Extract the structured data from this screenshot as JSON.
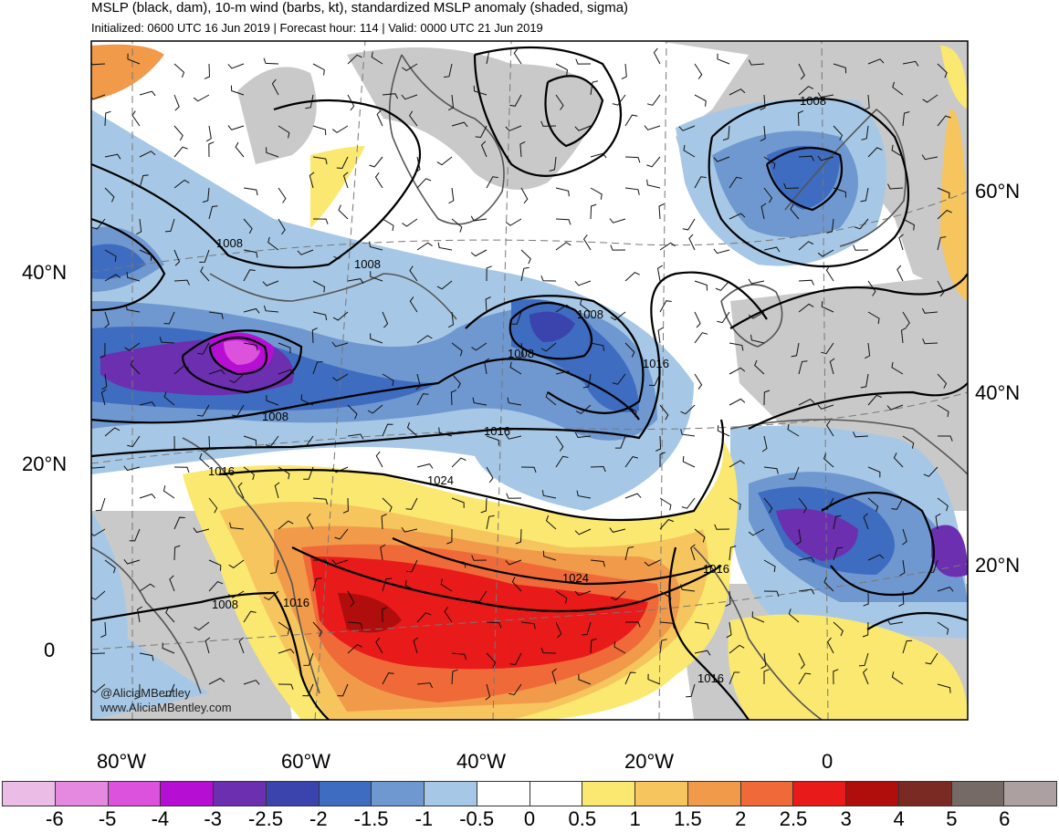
{
  "title": "MSLP (black, dam), 10-m wind (barbs, kt), standardized MSLP anomaly (shaded, sigma)",
  "subtitle": "Initialized: 0600 UTC 16 Jun 2019 | Forecast hour: 114 | Valid: 0000 UTC 21 Jun 2019",
  "credit": {
    "handle": "@AliciaMBentley",
    "site": "www.AliciaMBentley.com"
  },
  "lat_labels_left": [
    "40°N",
    "20°N",
    "0"
  ],
  "lat_labels_right": [
    "60°N",
    "40°N",
    "20°N"
  ],
  "lon_labels": [
    "80°W",
    "60°W",
    "40°W",
    "20°W",
    "0"
  ],
  "isobar_labels": [
    "1008",
    "1008",
    "1008",
    "1016",
    "1008",
    "1008",
    "1016",
    "1024",
    "1016",
    "1024",
    "1016",
    "1008",
    "1016",
    "1008",
    "1016"
  ],
  "colorbar": {
    "colors": [
      "#ebbce6",
      "#e588e0",
      "#dc52dc",
      "#b70ed4",
      "#6c2fb0",
      "#3b43ad",
      "#3e6cc0",
      "#6f98d0",
      "#a6c8e6",
      "#ffffff",
      "#ffffff",
      "#fbe870",
      "#f6c55e",
      "#f19a4a",
      "#ef6a38",
      "#e81a1a",
      "#b00d0d",
      "#7a2a22",
      "#756a66",
      "#aca1a0"
    ],
    "ticks": [
      "-6",
      "-5",
      "-4",
      "-3",
      "-2.5",
      "-2",
      "-1.5",
      "-1",
      "-0.5",
      "0",
      "0.5",
      "1",
      "1.5",
      "2",
      "2.5",
      "3",
      "4",
      "5",
      "6"
    ]
  },
  "colors": {
    "land_gray": "#c9c9c9",
    "coast": "#555555",
    "isobar": "#000000",
    "graticule": "#777777"
  }
}
